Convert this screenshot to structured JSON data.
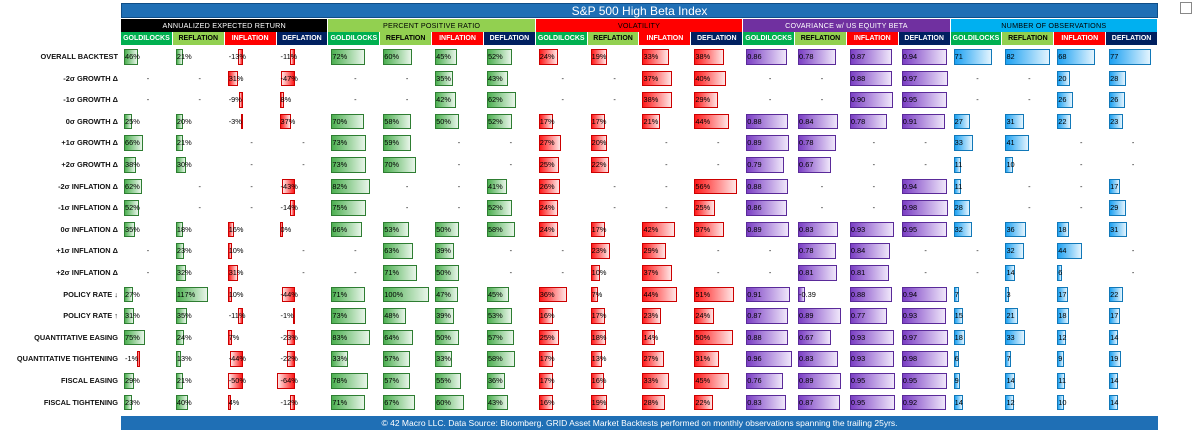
{
  "title": "S&P 500 High Beta Index",
  "footer": "© 42 Macro LLC. Data Source: Bloomberg. GRID Asset Market Backtests performed on monthly observations spanning the trailing 25yrs.",
  "colors": {
    "title_bg": "#1F6FB5",
    "green": "#4caf50",
    "red": "#ff1a1a",
    "purple": "#7b3fc4",
    "blue": "#1da1f2"
  },
  "groups": [
    {
      "label": "ANNUALIZED EXPECTED RETURN",
      "bg": "#000000",
      "fg": "#ffffff"
    },
    {
      "label": "PERCENT POSITIVE RATIO",
      "bg": "#92D050",
      "fg": "#000000"
    },
    {
      "label": "VOLATILITY",
      "bg": "#FF0000",
      "fg": "#000000"
    },
    {
      "label": "COVARIANCE w/ US EQUITY BETA",
      "bg": "#7030A0",
      "fg": "#ffffff"
    },
    {
      "label": "NUMBER OF OBSERVATIONS",
      "bg": "#00B0F0",
      "fg": "#000000"
    }
  ],
  "regimes": [
    {
      "label": "GOLDILOCKS",
      "bg": "#00B050",
      "fg": "#ffffff"
    },
    {
      "label": "REFLATION",
      "bg": "#92D050",
      "fg": "#000000"
    },
    {
      "label": "INFLATION",
      "bg": "#FF0000",
      "fg": "#ffffff"
    },
    {
      "label": "DEFLATION",
      "bg": "#002060",
      "fg": "#ffffff"
    }
  ],
  "rows": [
    {
      "label": "OVERALL BACKTEST",
      "ret": [
        "46%",
        "21%",
        "-13%",
        "-11%"
      ],
      "ppr": [
        "72%",
        "60%",
        "45%",
        "52%"
      ],
      "vol": [
        "24%",
        "19%",
        "33%",
        "38%"
      ],
      "cov": [
        "0.86",
        "0.78",
        "0.87",
        "0.94"
      ],
      "obs": [
        "71",
        "82",
        "68",
        "77"
      ]
    },
    {
      "label": "-2σ GROWTH Δ",
      "ret": [
        "-",
        "-",
        "31%",
        "-47%"
      ],
      "ppr": [
        "-",
        "-",
        "35%",
        "43%"
      ],
      "vol": [
        "-",
        "-",
        "37%",
        "40%"
      ],
      "cov": [
        "-",
        "-",
        "0.88",
        "0.97"
      ],
      "obs": [
        "-",
        "-",
        "20",
        "28"
      ]
    },
    {
      "label": "-1σ GROWTH Δ",
      "ret": [
        "-",
        "-",
        "-9%",
        "8%"
      ],
      "ppr": [
        "-",
        "-",
        "42%",
        "62%"
      ],
      "vol": [
        "-",
        "-",
        "38%",
        "29%"
      ],
      "cov": [
        "-",
        "-",
        "0.90",
        "0.95"
      ],
      "obs": [
        "-",
        "-",
        "26",
        "26"
      ]
    },
    {
      "label": "0σ GROWTH Δ",
      "ret": [
        "25%",
        "20%",
        "-3%",
        "37%"
      ],
      "ppr": [
        "70%",
        "58%",
        "50%",
        "52%"
      ],
      "vol": [
        "17%",
        "17%",
        "21%",
        "44%"
      ],
      "cov": [
        "0.88",
        "0.84",
        "0.78",
        "0.91"
      ],
      "obs": [
        "27",
        "31",
        "22",
        "23"
      ]
    },
    {
      "label": "+1σ GROWTH Δ",
      "ret": [
        "66%",
        "21%",
        "-",
        "-"
      ],
      "ppr": [
        "73%",
        "59%",
        "-",
        "-"
      ],
      "vol": [
        "27%",
        "20%",
        "-",
        "-"
      ],
      "cov": [
        "0.89",
        "0.78",
        "-",
        "-"
      ],
      "obs": [
        "33",
        "41",
        "-",
        "-"
      ]
    },
    {
      "label": "+2σ GROWTH Δ",
      "ret": [
        "38%",
        "30%",
        "-",
        "-"
      ],
      "ppr": [
        "73%",
        "70%",
        "-",
        "-"
      ],
      "vol": [
        "25%",
        "22%",
        "-",
        "-"
      ],
      "cov": [
        "0.79",
        "0.67",
        "-",
        "-"
      ],
      "obs": [
        "11",
        "10",
        "-",
        "-"
      ]
    },
    {
      "label": "-2σ INFLATION Δ",
      "ret": [
        "62%",
        "-",
        "-",
        "-43%"
      ],
      "ppr": [
        "82%",
        "-",
        "-",
        "41%"
      ],
      "vol": [
        "26%",
        "-",
        "-",
        "56%"
      ],
      "cov": [
        "0.88",
        "-",
        "-",
        "0.94"
      ],
      "obs": [
        "11",
        "-",
        "-",
        "17"
      ]
    },
    {
      "label": "-1σ INFLATION Δ",
      "ret": [
        "52%",
        "-",
        "-",
        "-14%"
      ],
      "ppr": [
        "75%",
        "-",
        "-",
        "52%"
      ],
      "vol": [
        "24%",
        "-",
        "-",
        "25%"
      ],
      "cov": [
        "0.86",
        "-",
        "-",
        "0.98"
      ],
      "obs": [
        "28",
        "-",
        "-",
        "29"
      ]
    },
    {
      "label": "0σ INFLATION Δ",
      "ret": [
        "35%",
        "18%",
        "16%",
        "0%"
      ],
      "ppr": [
        "66%",
        "53%",
        "50%",
        "58%"
      ],
      "vol": [
        "24%",
        "17%",
        "42%",
        "37%"
      ],
      "cov": [
        "0.89",
        "0.83",
        "0.93",
        "0.95"
      ],
      "obs": [
        "32",
        "36",
        "18",
        "31"
      ]
    },
    {
      "label": "+1σ INFLATION Δ",
      "ret": [
        "-",
        "23%",
        "10%",
        "-"
      ],
      "ppr": [
        "-",
        "63%",
        "39%",
        "-"
      ],
      "vol": [
        "-",
        "23%",
        "29%",
        "-"
      ],
      "cov": [
        "-",
        "0.78",
        "0.84",
        "-"
      ],
      "obs": [
        "-",
        "32",
        "44",
        "-"
      ]
    },
    {
      "label": "+2σ INFLATION Δ",
      "ret": [
        "-",
        "32%",
        "31%",
        "-"
      ],
      "ppr": [
        "-",
        "71%",
        "50%",
        "-"
      ],
      "vol": [
        "-",
        "10%",
        "37%",
        "-"
      ],
      "cov": [
        "-",
        "0.81",
        "0.81",
        "-"
      ],
      "obs": [
        "-",
        "14",
        "6",
        "-"
      ]
    },
    {
      "label": "POLICY RATE ↓",
      "ret": [
        "27%",
        "117%",
        "10%",
        "-44%"
      ],
      "ppr": [
        "71%",
        "100%",
        "47%",
        "45%"
      ],
      "vol": [
        "36%",
        "7%",
        "44%",
        "51%"
      ],
      "cov": [
        "0.91",
        "-0.39",
        "0.88",
        "0.94"
      ],
      "obs": [
        "7",
        "3",
        "17",
        "22"
      ]
    },
    {
      "label": "POLICY RATE ↑",
      "ret": [
        "31%",
        "35%",
        "-11%",
        "-1%"
      ],
      "ppr": [
        "73%",
        "48%",
        "39%",
        "53%"
      ],
      "vol": [
        "16%",
        "17%",
        "23%",
        "24%"
      ],
      "cov": [
        "0.87",
        "0.89",
        "0.77",
        "0.93"
      ],
      "obs": [
        "15",
        "21",
        "18",
        "17"
      ]
    },
    {
      "label": "QUANTITATIVE EASING",
      "ret": [
        "75%",
        "24%",
        "7%",
        "-23%"
      ],
      "ppr": [
        "83%",
        "64%",
        "50%",
        "57%"
      ],
      "vol": [
        "25%",
        "18%",
        "14%",
        "50%"
      ],
      "cov": [
        "0.88",
        "0.67",
        "0.93",
        "0.97"
      ],
      "obs": [
        "18",
        "33",
        "12",
        "14"
      ]
    },
    {
      "label": "QUANTITATIVE TIGHTENING",
      "ret": [
        "-1%",
        "13%",
        "-44%",
        "-22%"
      ],
      "ppr": [
        "33%",
        "57%",
        "33%",
        "58%"
      ],
      "vol": [
        "17%",
        "13%",
        "27%",
        "31%"
      ],
      "cov": [
        "0.96",
        "0.83",
        "0.93",
        "0.98"
      ],
      "obs": [
        "6",
        "7",
        "9",
        "19"
      ]
    },
    {
      "label": "FISCAL EASING",
      "ret": [
        "29%",
        "21%",
        "-50%",
        "-64%"
      ],
      "ppr": [
        "78%",
        "57%",
        "55%",
        "36%"
      ],
      "vol": [
        "17%",
        "16%",
        "33%",
        "45%"
      ],
      "cov": [
        "0.76",
        "0.89",
        "0.95",
        "0.95"
      ],
      "obs": [
        "9",
        "14",
        "11",
        "14"
      ]
    },
    {
      "label": "FISCAL TIGHTENING",
      "ret": [
        "23%",
        "40%",
        "4%",
        "-12%"
      ],
      "ppr": [
        "71%",
        "67%",
        "60%",
        "43%"
      ],
      "vol": [
        "16%",
        "19%",
        "28%",
        "22%"
      ],
      "cov": [
        "0.83",
        "0.87",
        "0.95",
        "0.92"
      ],
      "obs": [
        "14",
        "12",
        "10",
        "14"
      ]
    }
  ]
}
